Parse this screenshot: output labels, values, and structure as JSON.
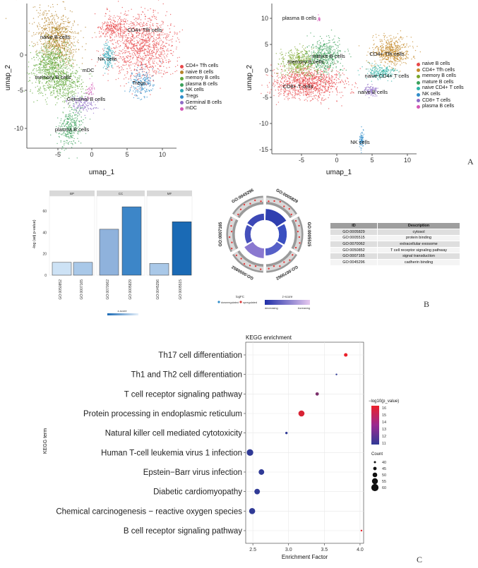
{
  "panel_labels": {
    "a": "A",
    "b": "B",
    "c": "C"
  },
  "umap_left": {
    "xlabel": "umap_1",
    "ylabel": "umap_2",
    "xticks": [
      "-5",
      "0",
      "5",
      "10"
    ],
    "yticks": [
      "0",
      "-5",
      "-10"
    ],
    "cluster_labels": [
      "naive B cells",
      "CD4+ Tfh cells",
      "NK cells",
      "memory B cells",
      "mDC",
      "Tregs",
      "Germinal B cells",
      "plasma B cells"
    ],
    "legend": [
      {
        "name": "CD4+ Tfh cells",
        "color": "#e8474a"
      },
      {
        "name": "naive B cells",
        "color": "#b5832a"
      },
      {
        "name": "memory B cells",
        "color": "#5fa83a"
      },
      {
        "name": "plasma B cells",
        "color": "#3aa05a"
      },
      {
        "name": "NK cells",
        "color": "#30a8b8"
      },
      {
        "name": "Tregs",
        "color": "#2f8cc9"
      },
      {
        "name": "Germinal B cells",
        "color": "#8e6bc6"
      },
      {
        "name": "mDC",
        "color": "#d456b5"
      }
    ]
  },
  "umap_right": {
    "xlabel": "umap_1",
    "ylabel": "umap_2",
    "xticks": [
      "-5",
      "0",
      "5",
      "10"
    ],
    "yticks": [
      "10",
      "5",
      "0",
      "-5",
      "-10",
      "-15"
    ],
    "cluster_labels": [
      "plasma B cells",
      "mature B cells",
      "memory B cells",
      "CD4+ Tfh cells",
      "naive CD4+ T cells",
      "naive B cells",
      "CD8+ T cells",
      "NK cells"
    ],
    "legend": [
      {
        "name": "naive B cells",
        "color": "#e8474a"
      },
      {
        "name": "CD4+ Tfh cells",
        "color": "#c48a2a"
      },
      {
        "name": "memory B cells",
        "color": "#7aa52a"
      },
      {
        "name": "mature B cells",
        "color": "#3aa05a"
      },
      {
        "name": "naive CD4+ T cells",
        "color": "#2cb3a6"
      },
      {
        "name": "NK cells",
        "color": "#2f8cc9"
      },
      {
        "name": "CD8+ T cells",
        "color": "#8e6bc6"
      },
      {
        "name": "plasma B cells",
        "color": "#d456b5"
      }
    ]
  },
  "go_bar": {
    "facets": [
      "BP",
      "CC",
      "MF"
    ],
    "ylabel": "-log (adj p-value)",
    "yticks": [
      "0",
      "20",
      "40",
      "60"
    ],
    "colorbar_title": "z-score",
    "colorbar_low": "decreasing",
    "colorbar_high": "increasing"
  },
  "go_circle": {
    "terms": [
      "GO:0005829",
      "GO:0005515",
      "GO:0070062",
      "GO:0050852",
      "GO:0007165",
      "GO:0045296"
    ],
    "logfc_title": "logFC",
    "down_label": "downregulated",
    "up_label": "upregulated",
    "z_title": "z-score",
    "z_low": "decreasing",
    "z_high": "increasing"
  },
  "go_table": {
    "headers": [
      "ID",
      "Description"
    ],
    "rows": [
      [
        "GO:0005829",
        "cytosol"
      ],
      [
        "GO:0005515",
        "protein binding"
      ],
      [
        "GO:0070062",
        "extracellular exosome"
      ],
      [
        "GO:0050852",
        "T cell receptor signaling pathway"
      ],
      [
        "GO:0007165",
        "signal transduction"
      ],
      [
        "GO:0045296",
        "cadherin binding"
      ]
    ]
  },
  "kegg_legend": {
    "color_title": "−log10(p_value)",
    "color_ticks": [
      "16",
      "15",
      "14",
      "13",
      "12",
      "11"
    ],
    "size_title": "Count",
    "size_ticks": [
      "40",
      "45",
      "50",
      "55",
      "60"
    ]
  },
  "chart_data": [
    {
      "type": "bar",
      "title": "",
      "facets": [
        "BP",
        "CC",
        "MF"
      ],
      "categories": [
        "GO:0050852",
        "GO:0007165",
        "GO:0070062",
        "GO:0005829",
        "GO:0045296",
        "GO:0005515"
      ],
      "facet_of": [
        "BP",
        "BP",
        "CC",
        "CC",
        "MF",
        "MF"
      ],
      "values": [
        12,
        12,
        43,
        64,
        11,
        50
      ],
      "colors": [
        "#cde2f5",
        "#a9c8e8",
        "#8fb2dc",
        "#3d86c8",
        "#a9c8e8",
        "#1a6ab5"
      ],
      "ylabel": "-log (adj p-value)",
      "ylim": [
        0,
        70
      ]
    },
    {
      "type": "scatter",
      "title": "KEGG enrichment",
      "xlabel": "Enrichment Factor",
      "ylabel": "KEGG term",
      "categories": [
        "Th17 cell differentiation",
        "Th1 and Th2 cell differentiation",
        "T cell receptor signaling pathway",
        "Protein processing in endoplasmic reticulum",
        "Natural killer cell mediated cytotoxicity",
        "Human T-cell leukemia virus 1 infection",
        "Epstein−Barr virus infection",
        "Diabetic cardiomyopathy",
        "Chemical carcinogenesis − reactive oxygen species",
        "B cell receptor signaling pathway"
      ],
      "x": [
        3.8,
        3.67,
        3.4,
        3.18,
        2.97,
        2.46,
        2.62,
        2.56,
        2.49,
        4.02
      ],
      "neglog10_p": [
        16,
        11,
        13,
        15.5,
        11,
        11,
        11,
        11,
        11,
        16
      ],
      "count": [
        46,
        36,
        45,
        56,
        41,
        58,
        54,
        54,
        56,
        36
      ],
      "xticks": [
        2.5,
        3.0,
        3.5,
        4.0
      ],
      "xlim": [
        2.4,
        4.05
      ],
      "color_range": [
        11,
        16
      ],
      "size_range": [
        40,
        60
      ],
      "grid": true
    }
  ]
}
